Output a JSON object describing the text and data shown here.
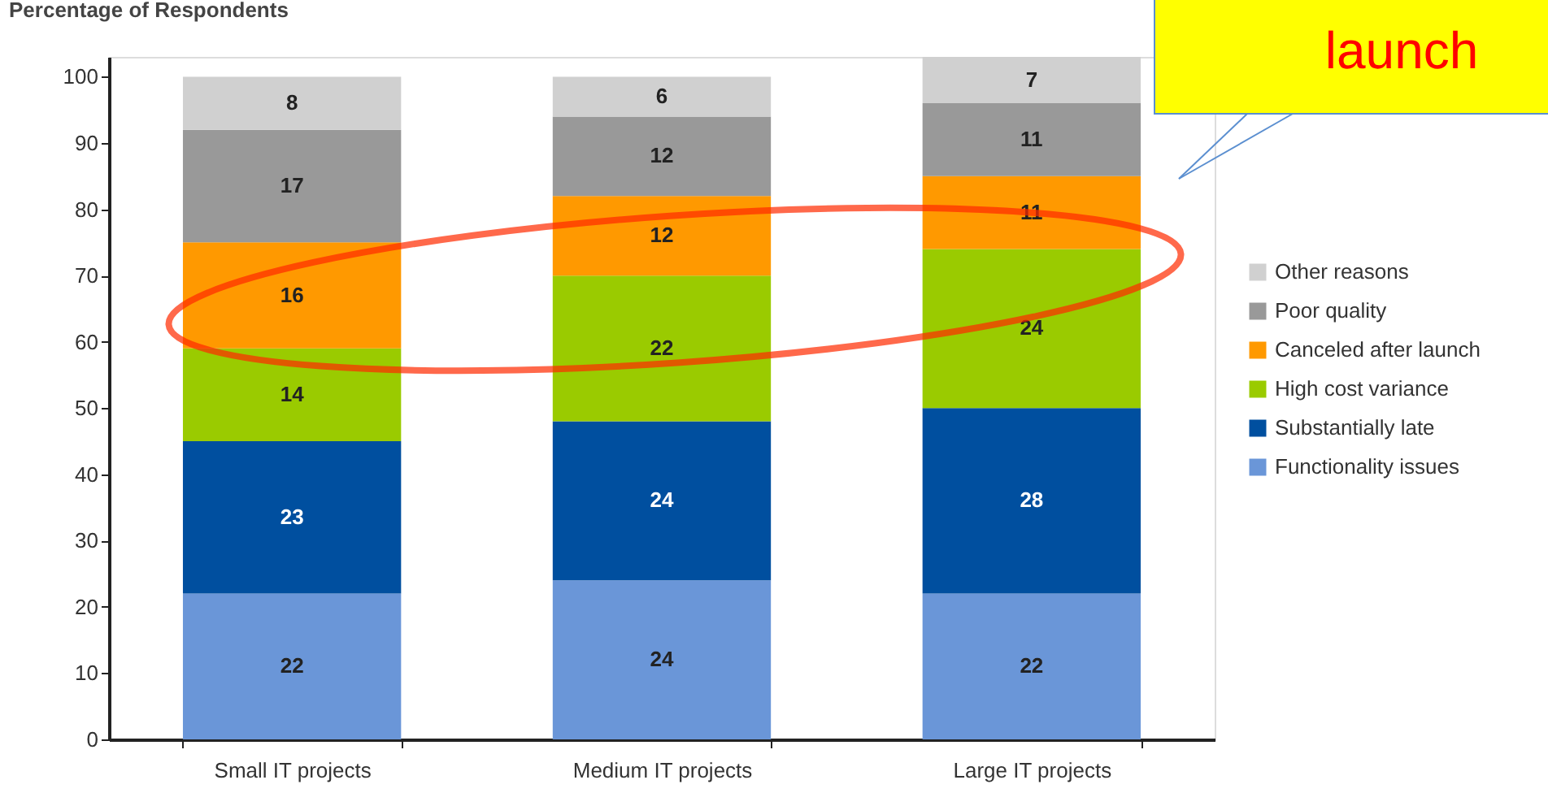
{
  "chart_data": {
    "type": "bar",
    "stacked": true,
    "ylabel": "Percentage of Respondents",
    "categories": [
      "Small IT projects",
      "Medium IT projects",
      "Large IT projects"
    ],
    "series": [
      {
        "name": "Functionality issues",
        "color": "#6a96d8",
        "values": [
          22,
          24,
          22
        ]
      },
      {
        "name": "Substantially late",
        "color": "#004f9f",
        "values": [
          23,
          24,
          28
        ]
      },
      {
        "name": "High cost variance",
        "color": "#9acb00",
        "values": [
          14,
          22,
          24
        ]
      },
      {
        "name": "Canceled after launch",
        "color": "#ff9900",
        "values": [
          16,
          12,
          11
        ]
      },
      {
        "name": "Poor quality",
        "color": "#999999",
        "values": [
          17,
          12,
          11
        ]
      },
      {
        "name": "Other reasons",
        "color": "#d0d0d0",
        "values": [
          8,
          6,
          7
        ]
      }
    ],
    "ylim": [
      0,
      103
    ],
    "yticks": [
      0,
      10,
      20,
      30,
      40,
      50,
      60,
      70,
      80,
      90,
      100
    ],
    "data_labels": true,
    "grid": false,
    "legend": "right",
    "annotations": [
      "launch"
    ]
  }
}
